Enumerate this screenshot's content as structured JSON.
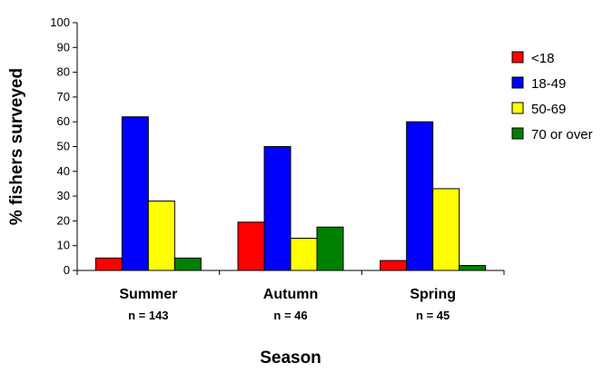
{
  "chart_data": {
    "type": "bar",
    "title": "",
    "xlabel": "Season",
    "ylabel": "% fishers surveyed",
    "ylim": [
      0,
      100
    ],
    "yticks": [
      0,
      10,
      20,
      30,
      40,
      50,
      60,
      70,
      80,
      90,
      100
    ],
    "categories": [
      "Summer",
      "Autumn",
      "Spring"
    ],
    "sample_sizes": [
      "n = 143",
      "n = 46",
      "n = 45"
    ],
    "series": [
      {
        "name": "<18",
        "color": "#ff0000",
        "values": [
          5,
          19.5,
          4
        ]
      },
      {
        "name": "18-49",
        "color": "#0000ff",
        "values": [
          62,
          50,
          60
        ]
      },
      {
        "name": "50-69",
        "color": "#ffff00",
        "values": [
          28,
          13,
          33
        ]
      },
      {
        "name": "70 or over",
        "color": "#008000",
        "values": [
          5,
          17.5,
          2
        ]
      }
    ],
    "grid": false,
    "legend_position": "right"
  }
}
